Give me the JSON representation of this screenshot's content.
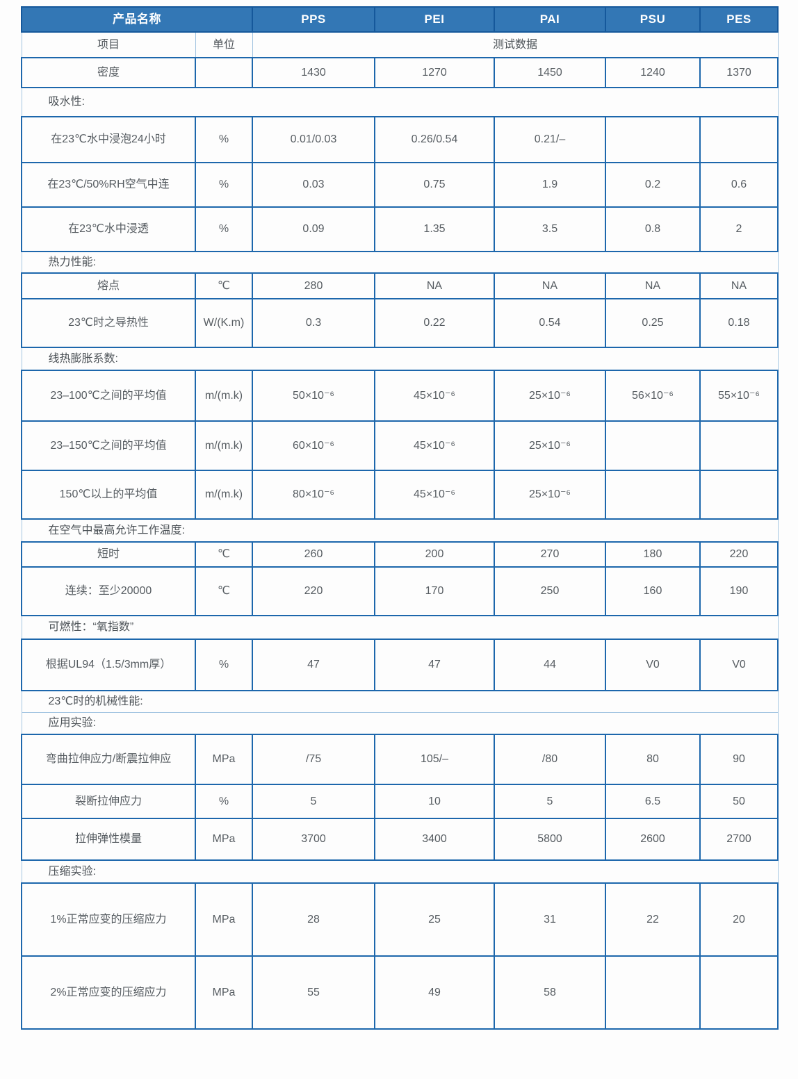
{
  "table": {
    "header": {
      "product_label": "产品名称",
      "products": [
        "PPS",
        "PEI",
        "PAI",
        "PSU",
        "PES"
      ]
    },
    "subheader": {
      "item_label": "项目",
      "unit_label": "单位",
      "data_label": "测试数据"
    },
    "rows": [
      {
        "type": "data",
        "label": "密度",
        "unit": "",
        "values": [
          "1430",
          "1270",
          "1450",
          "1240",
          "1370"
        ]
      },
      {
        "type": "section",
        "label": "吸水性:"
      },
      {
        "type": "data",
        "label": "在23℃水中浸泡24小时",
        "unit": "%",
        "values": [
          "0.01/0.03",
          "0.26/0.54",
          "0.21/–",
          "",
          ""
        ]
      },
      {
        "type": "data",
        "label": "在23℃/50%RH空气中连",
        "unit": "%",
        "values": [
          "0.03",
          "0.75",
          "1.9",
          "0.2",
          "0.6"
        ]
      },
      {
        "type": "data",
        "label": "在23℃水中浸透",
        "unit": "%",
        "values": [
          "0.09",
          "1.35",
          "3.5",
          "0.8",
          "2"
        ]
      },
      {
        "type": "section",
        "label": "热力性能:"
      },
      {
        "type": "data",
        "label": "熔点",
        "unit": "℃",
        "values": [
          "280",
          "NA",
          "NA",
          "NA",
          "NA"
        ]
      },
      {
        "type": "data",
        "label": "23℃时之导热性",
        "unit": "W/(K.m)",
        "values": [
          "0.3",
          "0.22",
          "0.54",
          "0.25",
          "0.18"
        ]
      },
      {
        "type": "section",
        "label": "线热膨胀系数:"
      },
      {
        "type": "data",
        "label": "23–100℃之间的平均值",
        "unit": "m/(m.k)",
        "values": [
          "50×10⁻⁶",
          "45×10⁻⁶",
          "25×10⁻⁶",
          "56×10⁻⁶",
          "55×10⁻⁶"
        ]
      },
      {
        "type": "data",
        "label": "23–150℃之间的平均值",
        "unit": "m/(m.k)",
        "values": [
          "60×10⁻⁶",
          "45×10⁻⁶",
          "25×10⁻⁶",
          "",
          ""
        ]
      },
      {
        "type": "data",
        "label": "150℃以上的平均值",
        "unit": "m/(m.k)",
        "values": [
          "80×10⁻⁶",
          "45×10⁻⁶",
          "25×10⁻⁶",
          "",
          ""
        ]
      },
      {
        "type": "section",
        "label": "在空气中最高允许工作温度:"
      },
      {
        "type": "data",
        "label": "短时",
        "unit": "℃",
        "values": [
          "260",
          "200",
          "270",
          "180",
          "220"
        ]
      },
      {
        "type": "data",
        "label": "连续：至少20000",
        "unit": "℃",
        "values": [
          "220",
          "170",
          "250",
          "160",
          "190"
        ]
      },
      {
        "type": "section",
        "label": "可燃性：“氧指数”"
      },
      {
        "type": "data",
        "label": "根据UL94（1.5/3mm厚）",
        "unit": "%",
        "values": [
          "47",
          "47",
          "44",
          "V0",
          "V0"
        ]
      },
      {
        "type": "section",
        "label": "23℃时的机械性能:"
      },
      {
        "type": "section",
        "label": "应用实验:"
      },
      {
        "type": "data",
        "label": "弯曲拉伸应力/断震拉伸应",
        "unit": "MPa",
        "values": [
          "/75",
          "105/–",
          "/80",
          "80",
          "90"
        ]
      },
      {
        "type": "data",
        "label": "裂断拉伸应力",
        "unit": "%",
        "values": [
          "5",
          "10",
          "5",
          "6.5",
          "50"
        ]
      },
      {
        "type": "data",
        "label": "拉伸弹性模量",
        "unit": "MPa",
        "values": [
          "3700",
          "3400",
          "5800",
          "2600",
          "2700"
        ]
      },
      {
        "type": "section",
        "label": "压缩实验:"
      },
      {
        "type": "data",
        "label": "1%正常应变的压缩应力",
        "unit": "MPa",
        "values": [
          "28",
          "25",
          "31",
          "22",
          "20"
        ]
      },
      {
        "type": "data",
        "label": "2%正常应变的压缩应力",
        "unit": "MPa",
        "values": [
          "55",
          "49",
          "58",
          "",
          ""
        ]
      }
    ]
  }
}
